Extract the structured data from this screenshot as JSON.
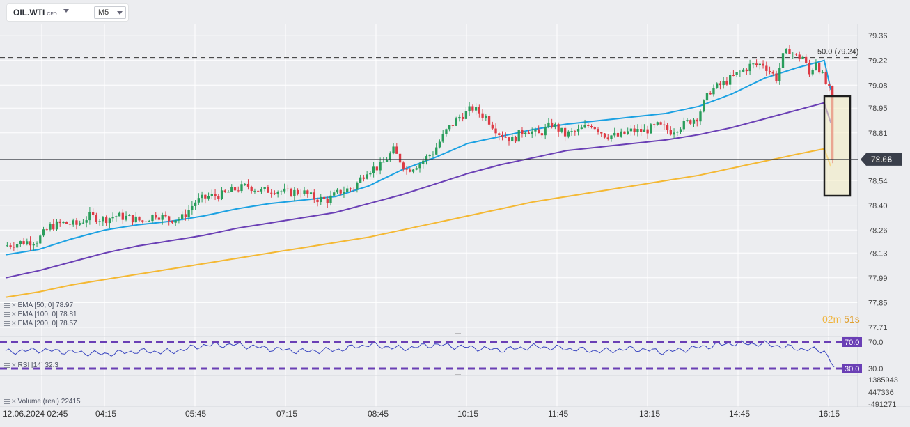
{
  "header": {
    "symbol": "OIL.WTI",
    "symbol_suffix": "CFD",
    "timeframe": "M5"
  },
  "countdown": {
    "minutes": "02",
    "minutes_unit": "m",
    "seconds": "51",
    "seconds_unit": "s"
  },
  "indicators": [
    {
      "label": "EMA  [50,  0]  78.97",
      "color": "#1ba1e2"
    },
    {
      "label": "EMA  [100,  0]  78.81",
      "color": "#6a3fb5"
    },
    {
      "label": "EMA  [200,  0]  78.57",
      "color": "#f4b833"
    }
  ],
  "rsi": {
    "label": "RSI  [14]  32.3",
    "upper": 70.0,
    "lower": 30.0,
    "upper_label": "70.0",
    "lower_label": "30.0",
    "current": 32.3,
    "line_color": "#3a46c0"
  },
  "volume": {
    "label": "Volume   (real)   22415",
    "ticks": [
      "1385943",
      "447336",
      "-491271"
    ]
  },
  "chart_data": {
    "type": "candlestick",
    "ylim": [
      77.67,
      79.42
    ],
    "y_ticks": [
      "79.36",
      "79.22",
      "79.08",
      "78.95",
      "78.81",
      "78.66",
      "78.54",
      "78.40",
      "78.26",
      "78.13",
      "77.99",
      "77.85",
      "77.71"
    ],
    "x_ticks": [
      "12.06.2024  02:45",
      "04:15",
      "05:45",
      "07:15",
      "08:45",
      "10:15",
      "11:45",
      "13:15",
      "14:45",
      "16:15"
    ],
    "current_price": 78.66,
    "current_price_label": "78.66",
    "fib_level": {
      "value": 79.24,
      "label": "50.0 (79.24)"
    },
    "colors": {
      "up": "#2a9d5c",
      "down": "#dd3b45"
    },
    "close_path": [
      [
        0,
        78.17
      ],
      [
        5,
        78.19
      ],
      [
        10,
        78.2
      ],
      [
        14,
        78.28
      ],
      [
        18,
        78.3
      ],
      [
        22,
        78.29
      ],
      [
        26,
        78.34
      ],
      [
        30,
        78.32
      ],
      [
        34,
        78.34
      ],
      [
        38,
        78.33
      ],
      [
        42,
        78.31
      ],
      [
        46,
        78.35
      ],
      [
        50,
        78.32
      ],
      [
        54,
        78.33
      ],
      [
        58,
        78.42
      ],
      [
        62,
        78.45
      ],
      [
        66,
        78.46
      ],
      [
        70,
        78.49
      ],
      [
        74,
        78.51
      ],
      [
        78,
        78.48
      ],
      [
        82,
        78.49
      ],
      [
        86,
        78.47
      ],
      [
        90,
        78.48
      ],
      [
        94,
        78.44
      ],
      [
        98,
        78.43
      ],
      [
        102,
        78.48
      ],
      [
        106,
        78.5
      ],
      [
        110,
        78.6
      ],
      [
        114,
        78.62
      ],
      [
        118,
        78.71
      ],
      [
        122,
        78.6
      ],
      [
        126,
        78.64
      ],
      [
        130,
        78.7
      ],
      [
        134,
        78.82
      ],
      [
        138,
        78.9
      ],
      [
        142,
        78.95
      ],
      [
        146,
        78.9
      ],
      [
        150,
        78.81
      ],
      [
        154,
        78.77
      ],
      [
        158,
        78.83
      ],
      [
        162,
        78.8
      ],
      [
        166,
        78.86
      ],
      [
        170,
        78.8
      ],
      [
        174,
        78.82
      ],
      [
        178,
        78.86
      ],
      [
        182,
        78.8
      ],
      [
        186,
        78.79
      ],
      [
        190,
        78.82
      ],
      [
        194,
        78.82
      ],
      [
        198,
        78.85
      ],
      [
        202,
        78.82
      ],
      [
        206,
        78.86
      ],
      [
        210,
        78.9
      ],
      [
        214,
        79.05
      ],
      [
        218,
        79.09
      ],
      [
        222,
        79.14
      ],
      [
        226,
        79.19
      ],
      [
        230,
        79.2
      ],
      [
        234,
        79.12
      ],
      [
        236,
        79.24
      ],
      [
        238,
        79.28
      ],
      [
        240,
        79.24
      ],
      [
        242,
        79.24
      ],
      [
        244,
        79.14
      ],
      [
        246,
        79.22
      ],
      [
        248,
        79.13
      ],
      [
        250,
        79.05
      ],
      [
        251,
        78.66
      ]
    ],
    "series": [
      {
        "name": "EMA [50, 0]",
        "color": "#1ba1e2",
        "points": [
          [
            0,
            78.12
          ],
          [
            10,
            78.15
          ],
          [
            20,
            78.21
          ],
          [
            30,
            78.26
          ],
          [
            40,
            78.29
          ],
          [
            50,
            78.31
          ],
          [
            60,
            78.34
          ],
          [
            70,
            78.38
          ],
          [
            80,
            78.41
          ],
          [
            90,
            78.43
          ],
          [
            100,
            78.45
          ],
          [
            110,
            78.51
          ],
          [
            120,
            78.6
          ],
          [
            130,
            78.67
          ],
          [
            140,
            78.75
          ],
          [
            150,
            78.79
          ],
          [
            160,
            78.83
          ],
          [
            170,
            78.86
          ],
          [
            180,
            78.88
          ],
          [
            190,
            78.9
          ],
          [
            200,
            78.92
          ],
          [
            210,
            78.96
          ],
          [
            220,
            79.03
          ],
          [
            230,
            79.12
          ],
          [
            240,
            79.18
          ],
          [
            248,
            79.22
          ],
          [
            251,
            78.97
          ]
        ]
      },
      {
        "name": "EMA [100, 0]",
        "color": "#6a3fb5",
        "points": [
          [
            0,
            77.99
          ],
          [
            10,
            78.03
          ],
          [
            20,
            78.08
          ],
          [
            30,
            78.13
          ],
          [
            40,
            78.17
          ],
          [
            50,
            78.2
          ],
          [
            60,
            78.23
          ],
          [
            70,
            78.27
          ],
          [
            80,
            78.3
          ],
          [
            90,
            78.33
          ],
          [
            100,
            78.36
          ],
          [
            110,
            78.41
          ],
          [
            120,
            78.46
          ],
          [
            130,
            78.52
          ],
          [
            140,
            78.58
          ],
          [
            150,
            78.63
          ],
          [
            160,
            78.67
          ],
          [
            170,
            78.71
          ],
          [
            180,
            78.73
          ],
          [
            190,
            78.75
          ],
          [
            200,
            78.77
          ],
          [
            210,
            78.8
          ],
          [
            220,
            78.84
          ],
          [
            230,
            78.89
          ],
          [
            240,
            78.94
          ],
          [
            248,
            78.98
          ],
          [
            251,
            78.81
          ]
        ]
      },
      {
        "name": "EMA [200, 0]",
        "color": "#f4b833",
        "points": [
          [
            0,
            77.88
          ],
          [
            10,
            77.91
          ],
          [
            20,
            77.95
          ],
          [
            30,
            77.98
          ],
          [
            40,
            78.01
          ],
          [
            50,
            78.04
          ],
          [
            60,
            78.07
          ],
          [
            70,
            78.1
          ],
          [
            80,
            78.13
          ],
          [
            90,
            78.16
          ],
          [
            100,
            78.19
          ],
          [
            110,
            78.22
          ],
          [
            120,
            78.26
          ],
          [
            130,
            78.3
          ],
          [
            140,
            78.34
          ],
          [
            150,
            78.38
          ],
          [
            160,
            78.42
          ],
          [
            170,
            78.45
          ],
          [
            180,
            78.48
          ],
          [
            190,
            78.51
          ],
          [
            200,
            78.54
          ],
          [
            210,
            78.57
          ],
          [
            220,
            78.61
          ],
          [
            230,
            78.65
          ],
          [
            240,
            78.69
          ],
          [
            248,
            78.72
          ],
          [
            251,
            78.57
          ]
        ]
      }
    ],
    "rsi_path": [
      [
        0,
        55
      ],
      [
        10,
        58
      ],
      [
        20,
        55
      ],
      [
        30,
        52
      ],
      [
        40,
        56
      ],
      [
        50,
        55
      ],
      [
        60,
        65
      ],
      [
        70,
        66
      ],
      [
        80,
        60
      ],
      [
        90,
        56
      ],
      [
        100,
        58
      ],
      [
        110,
        66
      ],
      [
        120,
        60
      ],
      [
        130,
        66
      ],
      [
        140,
        62
      ],
      [
        150,
        58
      ],
      [
        160,
        63
      ],
      [
        170,
        60
      ],
      [
        180,
        56
      ],
      [
        190,
        60
      ],
      [
        200,
        55
      ],
      [
        210,
        62
      ],
      [
        220,
        68
      ],
      [
        230,
        67
      ],
      [
        240,
        60
      ],
      [
        248,
        57
      ],
      [
        251,
        32.3
      ]
    ]
  }
}
